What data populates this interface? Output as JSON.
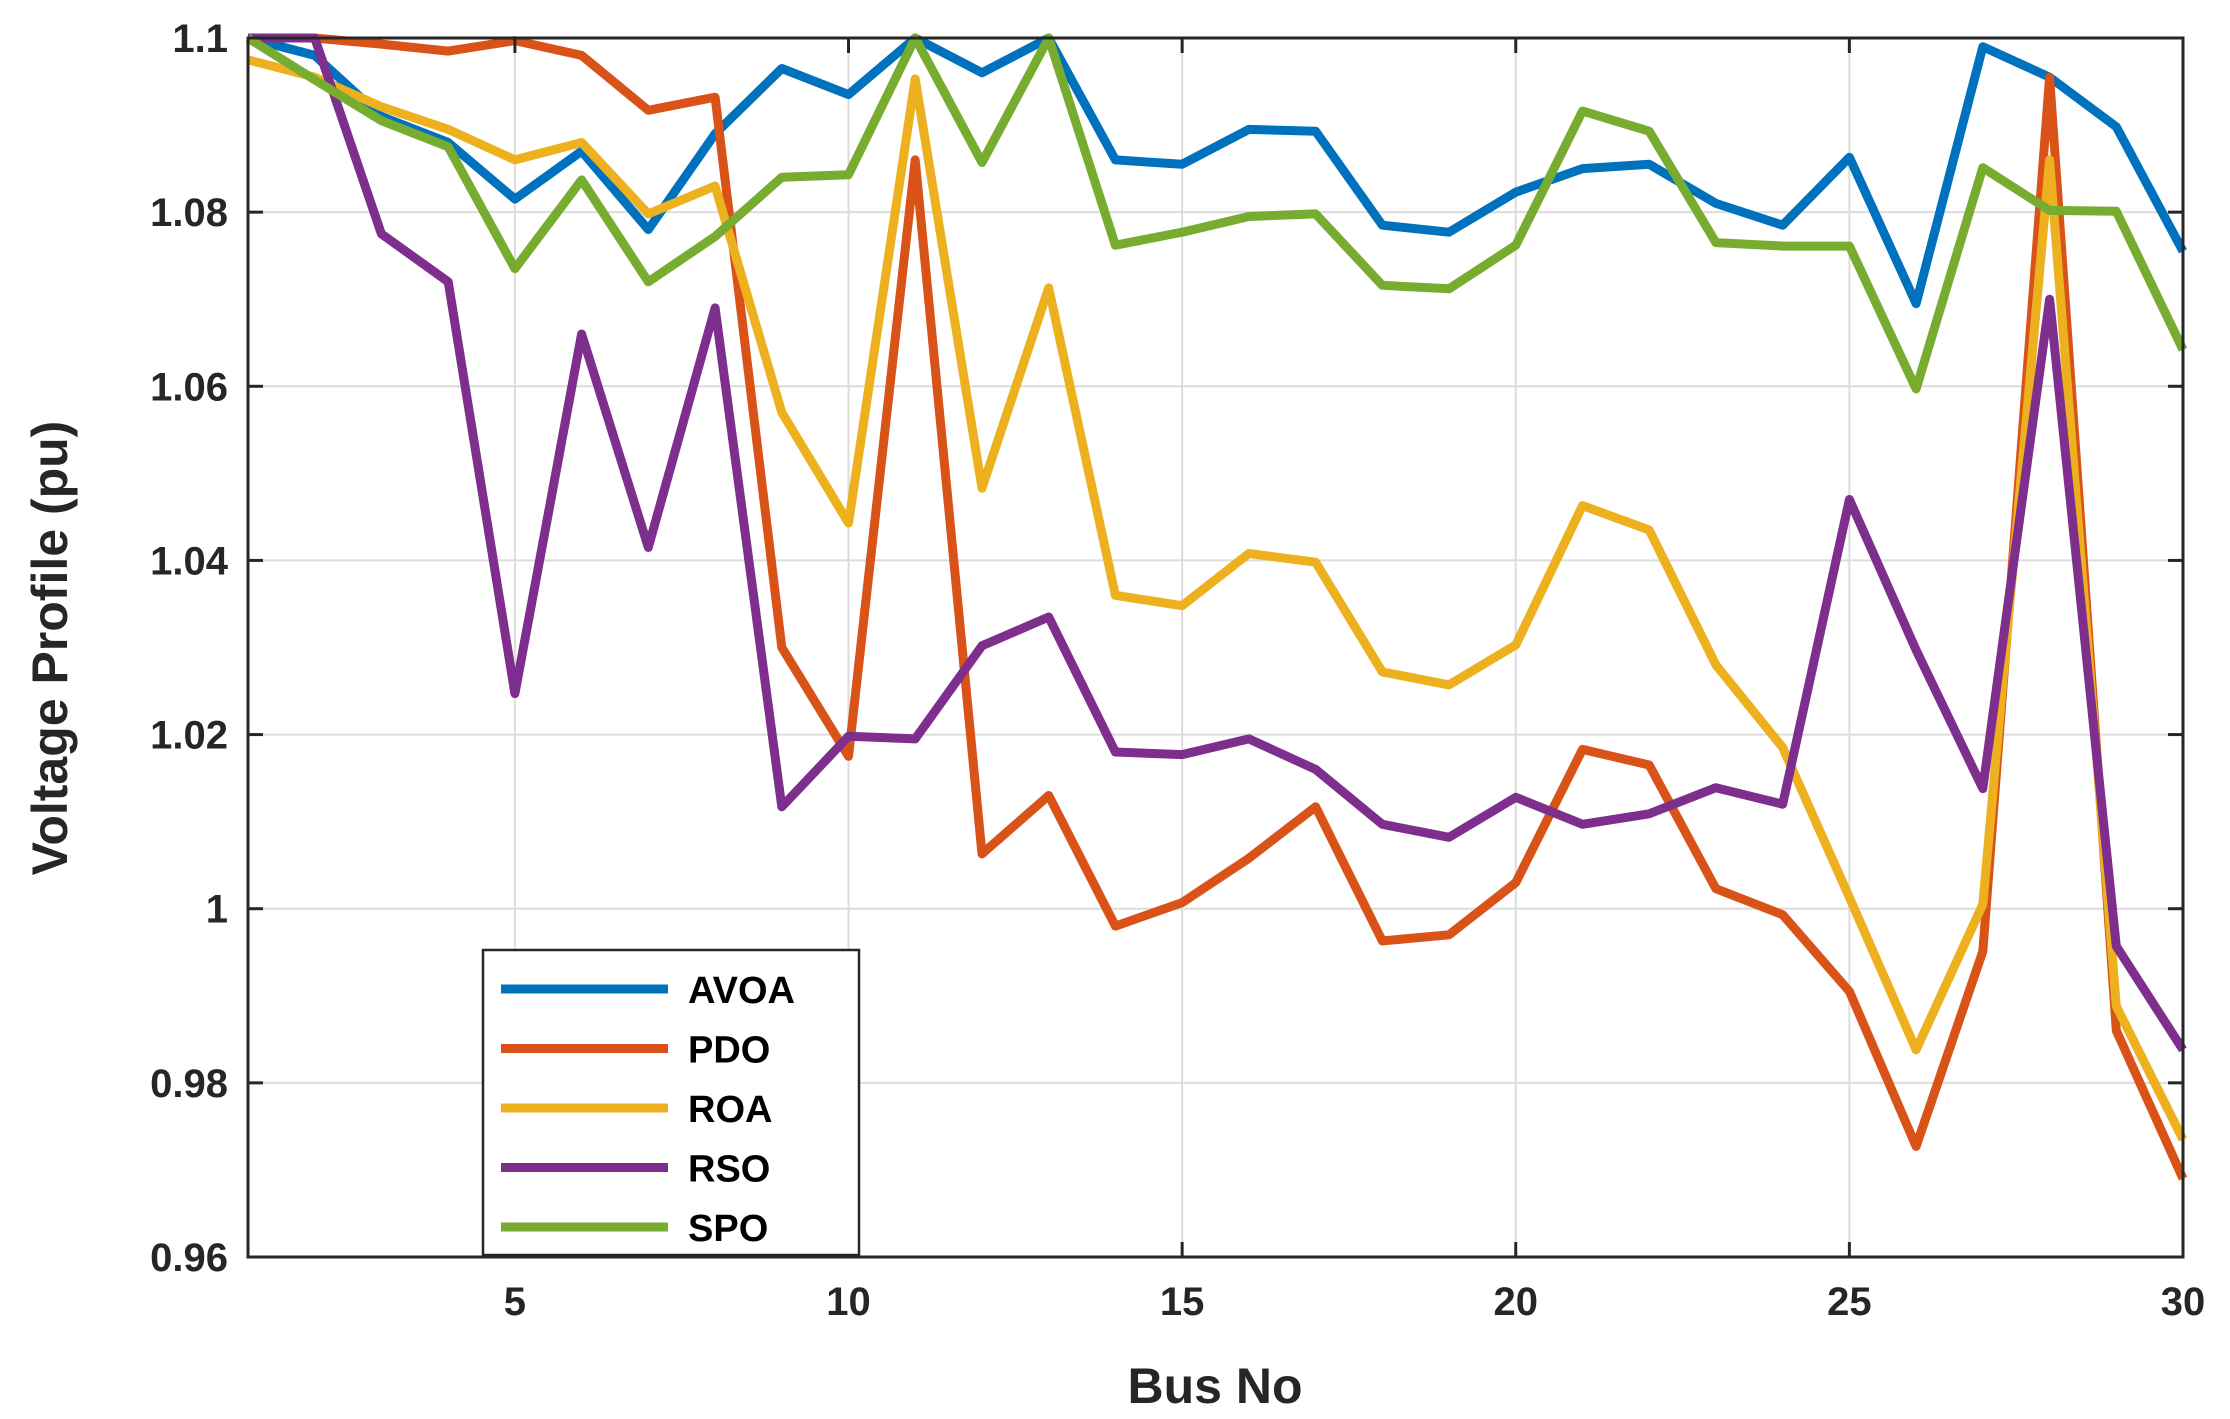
{
  "chart_data": {
    "type": "line",
    "title": "",
    "xlabel": "Bus No",
    "ylabel": "Voltage Profile (pu)",
    "xlim": [
      1,
      30
    ],
    "ylim": [
      0.96,
      1.1
    ],
    "xticks": [
      5,
      10,
      15,
      20,
      25,
      30
    ],
    "xtick_labels": [
      "5",
      "10",
      "15",
      "20",
      "25",
      "30"
    ],
    "yticks": [
      0.96,
      0.98,
      1.0,
      1.02,
      1.04,
      1.06,
      1.08,
      1.1
    ],
    "ytick_labels": [
      "0.96",
      "0.98",
      "1",
      "1.02",
      "1.04",
      "1.06",
      "1.08",
      "1.1"
    ],
    "grid": true,
    "legend_position": "bottom-left",
    "x": [
      1,
      2,
      3,
      4,
      5,
      6,
      7,
      8,
      9,
      10,
      11,
      12,
      13,
      14,
      15,
      16,
      17,
      18,
      19,
      20,
      21,
      22,
      23,
      24,
      25,
      26,
      27,
      28,
      29,
      30
    ],
    "series": [
      {
        "name": "AVOA",
        "color": "#0072BD",
        "values": [
          1.1,
          1.098,
          1.091,
          1.088,
          1.0815,
          1.087,
          1.078,
          1.089,
          1.0965,
          1.0935,
          1.1,
          1.096,
          1.1,
          1.086,
          1.0855,
          1.0895,
          1.0893,
          1.0785,
          1.0777,
          1.0823,
          1.085,
          1.0855,
          1.081,
          1.0785,
          1.0863,
          1.0695,
          1.099,
          1.0955,
          1.0898,
          1.0755
        ]
      },
      {
        "name": "PDO",
        "color": "#D95319",
        "values": [
          1.1,
          1.1,
          1.0993,
          1.0985,
          1.0997,
          1.098,
          1.0917,
          1.0932,
          1.03,
          1.0175,
          1.086,
          1.0063,
          1.013,
          0.998,
          1.0007,
          1.0058,
          1.0117,
          0.9963,
          0.997,
          1.003,
          1.0183,
          1.0165,
          1.0023,
          0.9993,
          0.9905,
          0.9727,
          0.9951,
          1.0955,
          0.986,
          0.969
        ]
      },
      {
        "name": "ROA",
        "color": "#EDB120",
        "values": [
          1.0975,
          1.0955,
          1.0921,
          1.0895,
          1.086,
          1.088,
          1.0798,
          1.083,
          1.057,
          1.0443,
          1.0953,
          1.0483,
          1.0713,
          1.036,
          1.0348,
          1.0408,
          1.0398,
          1.0272,
          1.0257,
          1.0303,
          1.0463,
          1.0435,
          1.028,
          1.0185,
          1.0013,
          0.9838,
          1.0005,
          1.086,
          0.9888,
          0.9735
        ]
      },
      {
        "name": "RSO",
        "color": "#7E2F8E",
        "values": [
          1.1,
          1.1,
          1.0775,
          1.072,
          1.0247,
          1.066,
          1.0415,
          1.069,
          1.0117,
          1.0198,
          1.0195,
          1.0302,
          1.0335,
          1.018,
          1.0177,
          1.0195,
          1.016,
          1.0097,
          1.0082,
          1.0128,
          1.0097,
          1.0109,
          1.0139,
          1.012,
          1.047,
          1.0297,
          1.0138,
          1.07,
          0.9957,
          0.9838
        ]
      },
      {
        "name": "SPO",
        "color": "#77AC30",
        "values": [
          1.1,
          1.0952,
          1.0905,
          1.0875,
          1.0735,
          1.0837,
          1.072,
          1.0772,
          1.084,
          1.0843,
          1.1,
          1.0857,
          1.1,
          1.0762,
          1.0777,
          1.0795,
          1.0798,
          1.0716,
          1.0712,
          1.0762,
          1.0916,
          1.0893,
          1.0765,
          1.0761,
          1.0761,
          1.0597,
          1.0851,
          1.0802,
          1.0801,
          1.0642
        ]
      }
    ]
  }
}
